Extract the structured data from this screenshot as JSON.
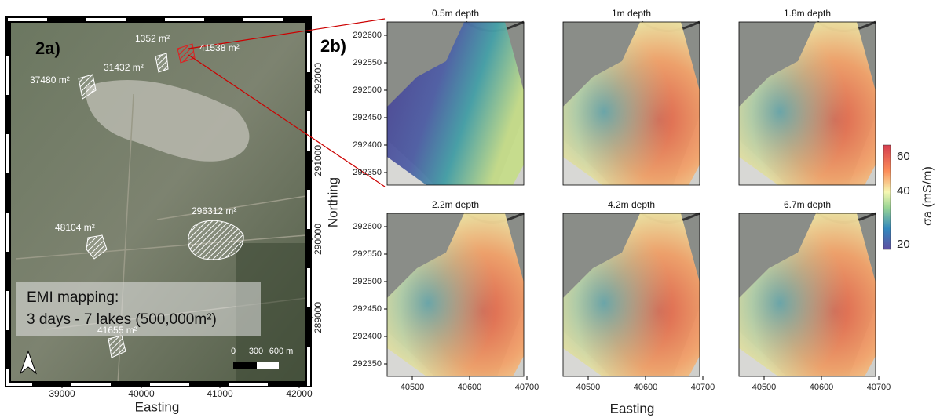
{
  "panel_a": {
    "label": "2a)",
    "areas": [
      "1352 m²",
      "31432 m²",
      "41538 m²",
      "37480 m²",
      "296312 m²",
      "48104 m²",
      "41655 m²"
    ],
    "caption": [
      "EMI mapping:",
      "3 days - 7 lakes (500,000m²)"
    ],
    "scale": [
      "0",
      "300",
      "600 m"
    ],
    "xticks": [
      "39000",
      "40000",
      "41000",
      "42000"
    ],
    "yticks": [
      "292000",
      "291000",
      "290000",
      "289000"
    ],
    "xlabel": "Easting",
    "ylabel": "Northing"
  },
  "panel_b": {
    "label": "2b)",
    "maps": [
      "0.5m depth",
      "1m depth",
      "1.8m depth",
      "2.2m depth",
      "4.2m depth",
      "6.7m depth"
    ],
    "yticks": [
      "292600",
      "292550",
      "292500",
      "292450",
      "292400",
      "292350"
    ],
    "xticks": [
      "40500",
      "40600",
      "40700"
    ],
    "xlabel": "Easting",
    "colorbar": {
      "ticks": [
        "60",
        "40",
        "20"
      ],
      "label": "σa (mS/m)"
    }
  }
}
